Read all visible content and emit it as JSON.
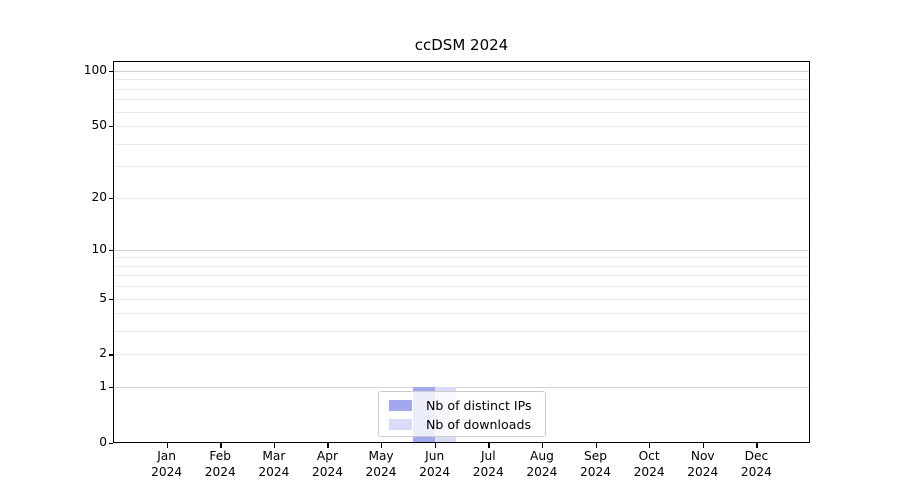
{
  "figure": {
    "title": "ccDSM 2024"
  },
  "chart_data": {
    "type": "bar",
    "title": "ccDSM 2024",
    "xlabel": "",
    "ylabel": "",
    "categories": [
      "Jan",
      "Feb",
      "Mar",
      "Apr",
      "May",
      "Jun",
      "Jul",
      "Aug",
      "Sep",
      "Oct",
      "Nov",
      "Dec"
    ],
    "category_sublabel": "2024",
    "series": [
      {
        "name": "Nb of distinct IPs",
        "color": "#a3a8ec",
        "values": [
          0,
          0,
          0,
          0,
          0,
          1,
          0,
          0,
          0,
          0,
          0,
          0
        ]
      },
      {
        "name": "Nb of downloads",
        "color": "#d9dbf7",
        "values": [
          0,
          0,
          0,
          0,
          0,
          1,
          0,
          0,
          0,
          0,
          0,
          0
        ]
      }
    ],
    "y_axis": {
      "scale": "log1p",
      "range": [
        0,
        100
      ],
      "labeled_ticks": [
        100,
        50,
        20,
        10,
        5,
        2,
        1,
        0
      ],
      "major_gridlines": [
        1,
        10,
        100
      ],
      "minor_gridlines": [
        2,
        3,
        4,
        5,
        6,
        7,
        8,
        9,
        20,
        30,
        40,
        50,
        60,
        70,
        80,
        90
      ]
    },
    "grid": "horizontal",
    "legend_position": "lower center",
    "colors": {
      "major_grid": "#d2d2d2",
      "minor_grid": "#ebebeb",
      "frame": "#000000"
    }
  }
}
